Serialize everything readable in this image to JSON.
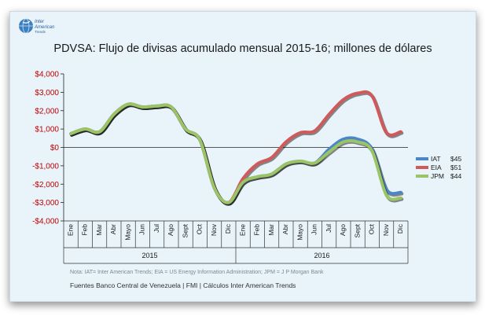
{
  "logo": {
    "line1": "Inter",
    "line2": "American",
    "line3": "Trends",
    "icon": "globe-icon"
  },
  "chart_data": {
    "type": "line",
    "title": "PDVSA: Flujo de divisas acumulado mensual 2015-16; millones de dólares",
    "categories": [
      "Ene",
      "Feb",
      "Mar",
      "Abr",
      "Mayo",
      "Jun",
      "Jul",
      "Ago",
      "Sept",
      "Oct",
      "Nov",
      "Dic",
      "Ene",
      "Feb",
      "Mar",
      "Abr",
      "Mayo",
      "Jun",
      "Jul",
      "Ago",
      "Sept",
      "Oct",
      "Nov",
      "Dic"
    ],
    "groups": [
      {
        "label": "2015",
        "start": 0,
        "end": 11
      },
      {
        "label": "2016",
        "start": 12,
        "end": 23
      }
    ],
    "ylim": [
      -4000,
      4000
    ],
    "yticks": [
      -4000,
      -3000,
      -2000,
      -1000,
      0,
      1000,
      2000,
      3000,
      4000
    ],
    "ytick_labels": [
      "-$4,000",
      "-$3,000",
      "-$2,000",
      "-$1,000",
      "$0",
      "$1,000",
      "$2,000",
      "$3,000",
      "$4,000"
    ],
    "grid": false,
    "legend_position": "right",
    "series": [
      {
        "name": "IAT",
        "end_label": "$45",
        "color": "#4a86c8",
        "values": [
          750,
          1000,
          850,
          1800,
          2350,
          2200,
          2250,
          2200,
          1000,
          400,
          -2200,
          -3000,
          -1900,
          -1600,
          -1450,
          -900,
          -750,
          -850,
          -100,
          450,
          450,
          -100,
          -2300,
          -2450
        ]
      },
      {
        "name": "EIA",
        "end_label": "$51",
        "color": "#d05a5a",
        "values": [
          750,
          1000,
          850,
          1800,
          2350,
          2200,
          2250,
          2200,
          1000,
          400,
          -2200,
          -3000,
          -1700,
          -900,
          -550,
          300,
          800,
          900,
          1800,
          2600,
          2950,
          2800,
          800,
          850
        ]
      },
      {
        "name": "JPM",
        "end_label": "$44",
        "color": "#9bc466",
        "values": [
          750,
          1000,
          850,
          1800,
          2350,
          2200,
          2250,
          2200,
          1000,
          400,
          -2200,
          -3000,
          -1900,
          -1600,
          -1450,
          -900,
          -750,
          -850,
          -250,
          300,
          300,
          -200,
          -2600,
          -2750
        ]
      }
    ]
  },
  "footer": {
    "note": "Nota: IAT= Inter American Trends; EIA = US Energy Information Administration; JPM = J P Morgan Bank",
    "source": "Fuentes Banco Central de Venezuela | FMI | Cálculos Inter American Trends"
  }
}
